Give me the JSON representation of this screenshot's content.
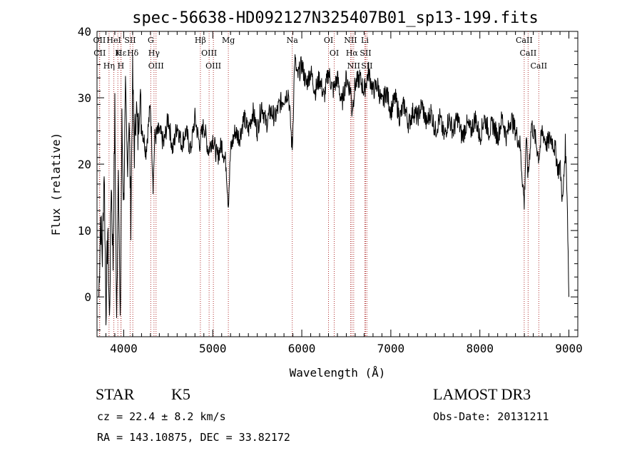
{
  "chart_data": {
    "type": "line",
    "title": "spec-56638-HD092127N325407B01_sp13-199.fits",
    "xlabel": "Wavelength (Å)",
    "ylabel": "Flux (relative)",
    "xlim": [
      3700,
      9100
    ],
    "ylim": [
      -6,
      40
    ],
    "xticks": [
      4000,
      5000,
      6000,
      7000,
      8000,
      9000
    ],
    "yticks": [
      0,
      10,
      20,
      30,
      40
    ],
    "grid": false,
    "line_color": "#000000",
    "marker_color": "#b03030",
    "spectral_lines": [
      {
        "label": "Hδ",
        "x": 4102
      },
      {
        "label": "K",
        "x": 3934
      },
      {
        "label": "Hε",
        "x": 3970
      },
      {
        "label": "OII",
        "x": 3727
      },
      {
        "label": "HeI",
        "x": 3889
      },
      {
        "label": "SII",
        "x": 4072
      },
      {
        "label": "CII",
        "x": 3730
      },
      {
        "label": "Hη",
        "x": 3835
      },
      {
        "label": "H",
        "x": 3968
      },
      {
        "label": "OIII",
        "x": 4363
      },
      {
        "label": "Hγ",
        "x": 4340
      },
      {
        "label": "G",
        "x": 4304
      },
      {
        "label": "OIII",
        "x": 5007
      },
      {
        "label": "OIII",
        "x": 4959
      },
      {
        "label": "Hβ",
        "x": 4861
      },
      {
        "label": "Mg",
        "x": 5175
      },
      {
        "label": "Na",
        "x": 5893
      },
      {
        "label": "OI",
        "x": 6300
      },
      {
        "label": "OI",
        "x": 6364
      },
      {
        "label": "Hα",
        "x": 6563
      },
      {
        "label": "SII",
        "x": 6716
      },
      {
        "label": "NII",
        "x": 6583
      },
      {
        "label": "Li",
        "x": 6708
      },
      {
        "label": "NII",
        "x": 6548
      },
      {
        "label": "SII",
        "x": 6731
      },
      {
        "label": "CaII",
        "x": 8542
      },
      {
        "label": "CaII",
        "x": 8498
      },
      {
        "label": "CaII",
        "x": 8662
      }
    ],
    "series": [
      {
        "x": [
          3720,
          3740,
          3760,
          3780,
          3800,
          3820,
          3840,
          3860,
          3880,
          3900,
          3920,
          3940,
          3960,
          3980,
          4000,
          4020,
          4040,
          4060,
          4080,
          4100,
          4120,
          4140,
          4160,
          4180,
          4200,
          4250,
          4300,
          4330,
          4350,
          4400,
          4450,
          4500,
          4550,
          4600,
          4650,
          4700,
          4750,
          4800,
          4850,
          4900,
          4950,
          5000,
          5050,
          5100,
          5150,
          5175,
          5200,
          5250,
          5300,
          5350,
          5400,
          5450,
          5500,
          5550,
          5600,
          5650,
          5700,
          5750,
          5800,
          5850,
          5893,
          5920,
          5950,
          6000,
          6050,
          6100,
          6150,
          6200,
          6250,
          6300,
          6350,
          6400,
          6450,
          6500,
          6550,
          6563,
          6600,
          6650,
          6700,
          6750,
          6800,
          6850,
          6900,
          6950,
          7000,
          7050,
          7100,
          7150,
          7200,
          7250,
          7300,
          7350,
          7400,
          7450,
          7500,
          7550,
          7600,
          7650,
          7700,
          7750,
          7800,
          7850,
          7900,
          7950,
          8000,
          8050,
          8100,
          8150,
          8200,
          8250,
          8300,
          8350,
          8400,
          8450,
          8498,
          8520,
          8542,
          8580,
          8620,
          8662,
          8700,
          8750,
          8800,
          8850,
          8880,
          8900,
          8930,
          8960,
          8980,
          9000
        ],
        "y": [
          0,
          12,
          6,
          20,
          -2,
          10,
          -4,
          18,
          5,
          28,
          -5,
          22,
          -6,
          26,
          14,
          30,
          20,
          27,
          12,
          33,
          22,
          29,
          24,
          31,
          26,
          22,
          29,
          17,
          24,
          25,
          23,
          27,
          22,
          26,
          23,
          25,
          22,
          27,
          23,
          26,
          22,
          24,
          21,
          23,
          20,
          14,
          22,
          25,
          24,
          27,
          25,
          28,
          25,
          29,
          26,
          28,
          27,
          29,
          30,
          31,
          22,
          36,
          33,
          35,
          32,
          34,
          31,
          33,
          30,
          34,
          31,
          33,
          29,
          33,
          31,
          28,
          32,
          33,
          31,
          34,
          31,
          32,
          29,
          31,
          28,
          30,
          27,
          29,
          26,
          28,
          27,
          29,
          26,
          28,
          25,
          27,
          24,
          27,
          25,
          27,
          24,
          26,
          25,
          27,
          24,
          27,
          25,
          26,
          24,
          27,
          24,
          27,
          25,
          23,
          14,
          24,
          18,
          26,
          24,
          21,
          25,
          23,
          24,
          22,
          19,
          20,
          14,
          23,
          16,
          0
        ]
      }
    ]
  },
  "info": {
    "object_class": "STAR",
    "subclass": "K5",
    "survey": "LAMOST DR3",
    "redshift_line": "cz = 22.4 ± 8.2 km/s",
    "obs_date": "Obs-Date: 20131211",
    "coords": "RA = 143.10875, DEC =  33.82172"
  }
}
